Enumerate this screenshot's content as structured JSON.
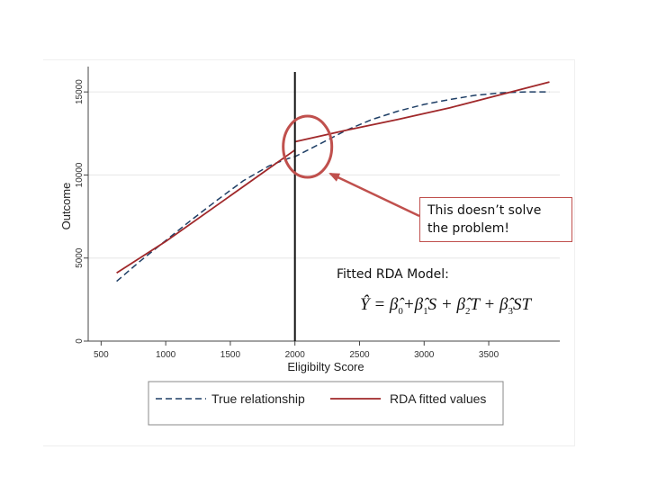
{
  "chart_data": {
    "type": "line",
    "xlabel": "Eligibilty Score",
    "ylabel": "Outcome",
    "xlim": [
      400,
      4050
    ],
    "ylim": [
      0,
      16200
    ],
    "x_ticks": [
      500,
      1000,
      1500,
      2000,
      2500,
      3000,
      3500
    ],
    "y_ticks": [
      0,
      5000,
      10000,
      15000
    ],
    "grid": "horizontal",
    "cutoff": 2000,
    "legend_position": "bottom",
    "series": [
      {
        "name": "True relationship",
        "style": "dashed",
        "color": "#1f3f66",
        "x": [
          620,
          800,
          1000,
          1200,
          1400,
          1600,
          1800,
          1950,
          2000,
          2100,
          2250,
          2400,
          2600,
          2800,
          3000,
          3200,
          3400,
          3600,
          3800,
          3970
        ],
        "y": [
          3600,
          4800,
          6050,
          7300,
          8500,
          9650,
          10550,
          11000,
          11100,
          11500,
          12100,
          12700,
          13350,
          13850,
          14250,
          14550,
          14800,
          14950,
          15000,
          15000
        ]
      },
      {
        "name": "RDA fitted values",
        "style": "solid",
        "color": "#a0282a",
        "segments": [
          {
            "x": [
              620,
              1000,
              1400,
              1800,
              2000
            ],
            "y": [
              4100,
              6000,
              8200,
              10400,
              11500
            ]
          },
          {
            "x": [
              2000,
              2400,
              2800,
              3200,
              3600,
              3970
            ],
            "y": [
              12000,
              12700,
              13350,
              14050,
              14850,
              15600
            ]
          }
        ]
      }
    ],
    "callout": "This doesn’t solve the problem!",
    "model_label": "Fitted RDA Model:"
  }
}
